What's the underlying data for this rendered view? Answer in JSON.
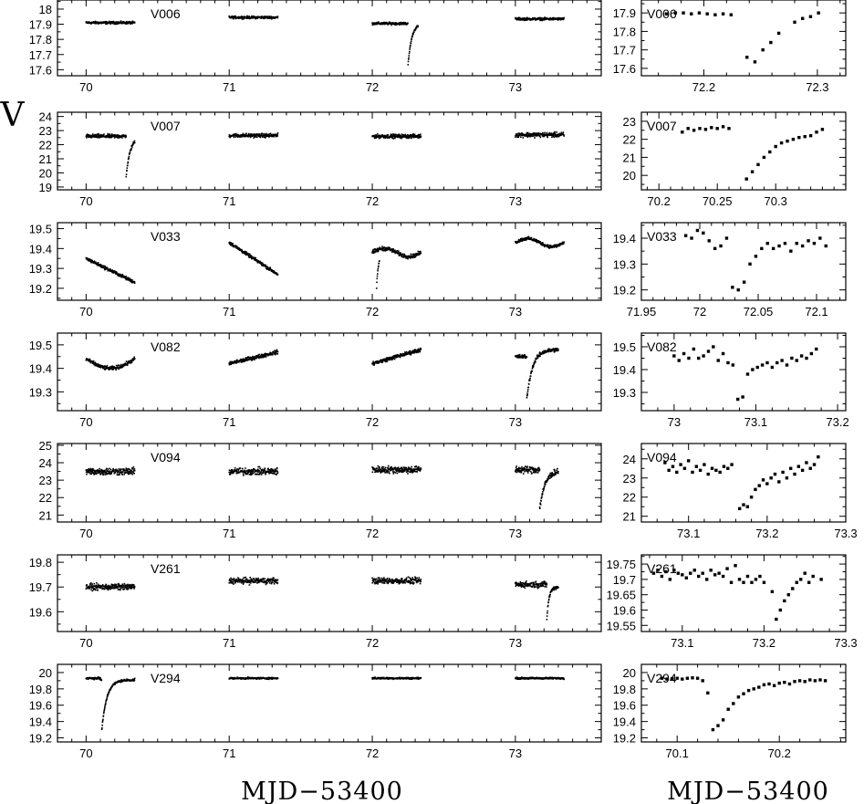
{
  "figure": {
    "ylabel": "V",
    "xlabel_left": "MJD−53400",
    "xlabel_right": "MJD−53400"
  },
  "chart_data": [
    {
      "type": "scatter",
      "side": "left",
      "label": "V006",
      "xlim": [
        69.8,
        73.6
      ],
      "ylim": [
        18.06,
        17.56
      ],
      "xticks": [
        70,
        71,
        72,
        73
      ],
      "yticks": [
        17.6,
        17.7,
        17.8,
        17.9,
        18
      ],
      "ytick_labels": [
        "17.6",
        "17.7",
        "17.8",
        "17.9",
        "18"
      ],
      "segments": [
        {
          "start": 70,
          "end": 70.34,
          "f": "flat",
          "base": 17.91,
          "noise": 0.012
        },
        {
          "start": 71,
          "end": 71.34,
          "f": "flat",
          "base": 17.945,
          "noise": 0.012
        },
        {
          "start": 72,
          "end": 72.24,
          "f": "flat",
          "base": 17.905,
          "noise": 0.012
        },
        {
          "start": 72.24,
          "end": 72.32,
          "f": "flare",
          "base": 17.905,
          "peak": 17.63,
          "peak_x": 72.25,
          "decay": 0.025,
          "noise": 0.01
        },
        {
          "start": 73,
          "end": 73.34,
          "f": "flat",
          "base": 17.935,
          "noise": 0.012
        }
      ]
    },
    {
      "type": "scatter",
      "side": "left",
      "label": "V007",
      "xlim": [
        69.8,
        73.6
      ],
      "ylim": [
        24.3,
        18.8
      ],
      "xticks": [
        70,
        71,
        72,
        73
      ],
      "yticks": [
        19,
        20,
        21,
        22,
        23,
        24
      ],
      "ytick_labels": [
        "19",
        "20",
        "21",
        "22",
        "23",
        "24"
      ],
      "segments": [
        {
          "start": 70,
          "end": 70.28,
          "f": "flat",
          "base": 22.6,
          "noise": 0.2
        },
        {
          "start": 70.28,
          "end": 70.34,
          "f": "flare",
          "base": 22.6,
          "peak": 19.8,
          "peak_x": 70.28,
          "decay": 0.03,
          "noise": 0.15
        },
        {
          "start": 71,
          "end": 71.34,
          "f": "flat",
          "base": 22.65,
          "noise": 0.2
        },
        {
          "start": 72,
          "end": 72.34,
          "f": "flat",
          "base": 22.6,
          "noise": 0.2
        },
        {
          "start": 73,
          "end": 73.34,
          "f": "flat",
          "base": 22.7,
          "noise": 0.25
        }
      ]
    },
    {
      "type": "scatter",
      "side": "left",
      "label": "V033",
      "xlim": [
        69.8,
        73.6
      ],
      "ylim": [
        19.53,
        19.14
      ],
      "xticks": [
        70,
        71,
        72,
        73
      ],
      "yticks": [
        19.2,
        19.3,
        19.4,
        19.5
      ],
      "ytick_labels": [
        "19.2",
        "19.3",
        "19.4",
        "19.5"
      ],
      "segments": [
        {
          "start": 70,
          "end": 70.34,
          "f": "linear",
          "y0": 19.35,
          "y1": 19.23,
          "noise": 0.012
        },
        {
          "start": 71,
          "end": 71.34,
          "f": "linear",
          "y0": 19.43,
          "y1": 19.27,
          "noise": 0.012
        },
        {
          "start": 72,
          "end": 72.34,
          "f": "wave",
          "base": 19.38,
          "amp": 0.02,
          "noise": 0.015
        },
        {
          "start": 72.03,
          "end": 72.05,
          "f": "flare",
          "base": 19.36,
          "peak": 19.2,
          "peak_x": 72.03,
          "decay": 0.01,
          "noise": 0.01
        },
        {
          "start": 73,
          "end": 73.34,
          "f": "wave",
          "base": 19.43,
          "amp": 0.02,
          "noise": 0.012
        }
      ]
    },
    {
      "type": "scatter",
      "side": "left",
      "label": "V082",
      "xlim": [
        69.8,
        73.6
      ],
      "ylim": [
        19.55,
        19.22
      ],
      "xticks": [
        70,
        71,
        72,
        73
      ],
      "yticks": [
        19.3,
        19.4,
        19.5
      ],
      "ytick_labels": [
        "19.3",
        "19.4",
        "19.5"
      ],
      "segments": [
        {
          "start": 70,
          "end": 70.34,
          "f": "hump",
          "base": 19.44,
          "amp": 0.04,
          "noise": 0.012
        },
        {
          "start": 71,
          "end": 71.34,
          "f": "linear",
          "y0": 19.42,
          "y1": 19.47,
          "noise": 0.012
        },
        {
          "start": 72,
          "end": 72.34,
          "f": "linear",
          "y0": 19.42,
          "y1": 19.48,
          "noise": 0.012
        },
        {
          "start": 73,
          "end": 73.08,
          "f": "flat",
          "base": 19.45,
          "noise": 0.012
        },
        {
          "start": 73.08,
          "end": 73.3,
          "f": "flare",
          "base": 19.48,
          "peak": 19.27,
          "peak_x": 73.08,
          "decay": 0.04,
          "noise": 0.012
        }
      ]
    },
    {
      "type": "scatter",
      "side": "left",
      "label": "V094",
      "xlim": [
        69.8,
        73.6
      ],
      "ylim": [
        25.1,
        20.6
      ],
      "xticks": [
        70,
        71,
        72,
        73
      ],
      "yticks": [
        21,
        22,
        23,
        24,
        25
      ],
      "ytick_labels": [
        "21",
        "22",
        "23",
        "24",
        "25"
      ],
      "segments": [
        {
          "start": 70,
          "end": 70.34,
          "f": "flat",
          "base": 23.5,
          "noise": 0.3
        },
        {
          "start": 71,
          "end": 71.34,
          "f": "flat",
          "base": 23.5,
          "noise": 0.3
        },
        {
          "start": 72,
          "end": 72.34,
          "f": "flat",
          "base": 23.6,
          "noise": 0.3
        },
        {
          "start": 73,
          "end": 73.17,
          "f": "flat",
          "base": 23.6,
          "noise": 0.3
        },
        {
          "start": 73.17,
          "end": 73.3,
          "f": "flare",
          "base": 23.6,
          "peak": 21.4,
          "peak_x": 73.17,
          "decay": 0.04,
          "noise": 0.25
        }
      ]
    },
    {
      "type": "scatter",
      "side": "left",
      "label": "V261",
      "xlim": [
        69.8,
        73.6
      ],
      "ylim": [
        19.83,
        19.52
      ],
      "xticks": [
        70,
        71,
        72,
        73
      ],
      "yticks": [
        19.6,
        19.7,
        19.8
      ],
      "ytick_labels": [
        "19.6",
        "19.7",
        "19.8"
      ],
      "segments": [
        {
          "start": 70,
          "end": 70.34,
          "f": "flat",
          "base": 19.7,
          "noise": 0.018
        },
        {
          "start": 71,
          "end": 71.34,
          "f": "flat",
          "base": 19.725,
          "noise": 0.018
        },
        {
          "start": 72,
          "end": 72.34,
          "f": "flat",
          "base": 19.725,
          "noise": 0.018
        },
        {
          "start": 73,
          "end": 73.22,
          "f": "flat",
          "base": 19.71,
          "noise": 0.018
        },
        {
          "start": 73.22,
          "end": 73.3,
          "f": "flare",
          "base": 19.7,
          "peak": 19.57,
          "peak_x": 73.22,
          "decay": 0.015,
          "noise": 0.01
        }
      ]
    },
    {
      "type": "scatter",
      "side": "left",
      "label": "V294",
      "xlim": [
        69.8,
        73.6
      ],
      "ylim": [
        20.1,
        19.15
      ],
      "xticks": [
        70,
        71,
        72,
        73
      ],
      "yticks": [
        19.2,
        19.4,
        19.6,
        19.8,
        20
      ],
      "ytick_labels": [
        "19.2",
        "19.4",
        "19.6",
        "19.8",
        "20"
      ],
      "segments": [
        {
          "start": 70,
          "end": 70.1,
          "f": "flat",
          "base": 19.93,
          "noise": 0.02
        },
        {
          "start": 70.1,
          "end": 70.34,
          "f": "flare",
          "base": 19.91,
          "peak": 19.3,
          "peak_x": 70.11,
          "decay": 0.035,
          "noise": 0.02
        },
        {
          "start": 71,
          "end": 71.34,
          "f": "flat",
          "base": 19.93,
          "noise": 0.015
        },
        {
          "start": 72,
          "end": 72.34,
          "f": "flat",
          "base": 19.93,
          "noise": 0.015
        },
        {
          "start": 73,
          "end": 73.34,
          "f": "flat",
          "base": 19.93,
          "noise": 0.015
        }
      ]
    },
    {
      "type": "scatter",
      "side": "right",
      "label": "V006",
      "xlim": [
        72.145,
        72.325
      ],
      "ylim": [
        17.97,
        17.56
      ],
      "xticks": [
        72.2,
        72.3
      ],
      "xtick_labels": [
        "72.2",
        "72.3"
      ],
      "yticks": [
        17.6,
        17.7,
        17.8,
        17.9
      ],
      "ytick_labels": [
        "17.6",
        "17.7",
        "17.8",
        "17.9"
      ],
      "x": [
        72.167,
        72.175,
        72.182,
        72.189,
        72.196,
        72.203,
        72.21,
        72.217,
        72.224,
        72.238,
        72.245,
        72.252,
        72.259,
        72.266,
        72.28,
        72.287,
        72.294,
        72.301
      ],
      "y": [
        17.895,
        17.9,
        17.9,
        17.895,
        17.9,
        17.895,
        17.89,
        17.895,
        17.89,
        17.66,
        17.635,
        17.7,
        17.74,
        17.79,
        17.85,
        17.87,
        17.88,
        17.9
      ]
    },
    {
      "type": "scatter",
      "side": "right",
      "label": "V007",
      "xlim": [
        70.185,
        70.36
      ],
      "ylim": [
        23.5,
        19.2
      ],
      "xticks": [
        70.2,
        70.25,
        70.3
      ],
      "xtick_labels": [
        "70.2",
        "70.25",
        "70.3"
      ],
      "yticks": [
        20,
        21,
        22,
        23
      ],
      "ytick_labels": [
        "20",
        "21",
        "22",
        "23"
      ],
      "x": [
        70.22,
        70.225,
        70.23,
        70.235,
        70.24,
        70.245,
        70.25,
        70.255,
        70.26,
        70.275,
        70.28,
        70.285,
        70.29,
        70.295,
        70.3,
        70.305,
        70.31,
        70.315,
        70.32,
        70.325,
        70.33,
        70.335,
        70.34
      ],
      "y": [
        22.4,
        22.6,
        22.5,
        22.6,
        22.55,
        22.65,
        22.6,
        22.7,
        22.6,
        19.8,
        20.2,
        20.6,
        21.0,
        21.3,
        21.6,
        21.8,
        21.9,
        22.0,
        22.1,
        22.15,
        22.2,
        22.4,
        22.55
      ]
    },
    {
      "type": "scatter",
      "side": "right",
      "label": "V033",
      "xlim": [
        71.95,
        72.125
      ],
      "ylim": [
        19.46,
        19.16
      ],
      "xticks": [
        71.95,
        72,
        72.05,
        72.1
      ],
      "xtick_labels": [
        "71.95",
        "72",
        "72.05",
        "72.1"
      ],
      "yticks": [
        19.2,
        19.3,
        19.4
      ],
      "ytick_labels": [
        "19.2",
        "19.3",
        "19.4"
      ],
      "x": [
        71.988,
        71.993,
        71.998,
        72.003,
        72.008,
        72.013,
        72.018,
        72.023,
        72.028,
        72.033,
        72.038,
        72.043,
        72.048,
        72.053,
        72.058,
        72.063,
        72.068,
        72.073,
        72.078,
        72.083,
        72.088,
        72.093,
        72.098,
        72.103,
        72.108
      ],
      "y": [
        19.41,
        19.4,
        19.43,
        19.42,
        19.39,
        19.36,
        19.37,
        19.4,
        19.21,
        19.2,
        19.23,
        19.3,
        19.33,
        19.36,
        19.38,
        19.36,
        19.37,
        19.38,
        19.35,
        19.38,
        19.37,
        19.39,
        19.38,
        19.4,
        19.37
      ]
    },
    {
      "type": "scatter",
      "side": "right",
      "label": "V082",
      "xlim": [
        72.96,
        73.21
      ],
      "ylim": [
        19.56,
        19.22
      ],
      "xticks": [
        73,
        73.1,
        73.2
      ],
      "xtick_labels": [
        "73",
        "73.1",
        "73.2"
      ],
      "yticks": [
        19.3,
        19.4,
        19.5
      ],
      "ytick_labels": [
        "19.3",
        "19.4",
        "19.5"
      ],
      "x": [
        73.0,
        73.006,
        73.012,
        73.018,
        73.024,
        73.03,
        73.036,
        73.042,
        73.048,
        73.054,
        73.06,
        73.066,
        73.072,
        73.078,
        73.084,
        73.09,
        73.096,
        73.102,
        73.108,
        73.114,
        73.12,
        73.126,
        73.132,
        73.138,
        73.144,
        73.15,
        73.156,
        73.162,
        73.168,
        73.174
      ],
      "y": [
        19.46,
        19.44,
        19.47,
        19.45,
        19.49,
        19.45,
        19.46,
        19.48,
        19.5,
        19.44,
        19.47,
        19.43,
        19.42,
        19.27,
        19.28,
        19.38,
        19.4,
        19.41,
        19.42,
        19.43,
        19.41,
        19.43,
        19.44,
        19.42,
        19.45,
        19.44,
        19.46,
        19.45,
        19.47,
        19.49
      ]
    },
    {
      "type": "scatter",
      "side": "right",
      "label": "V094",
      "xlim": [
        73.04,
        73.3
      ],
      "ylim": [
        24.8,
        20.7
      ],
      "xticks": [
        73.1,
        73.2,
        73.3
      ],
      "xtick_labels": [
        "73.1",
        "73.2",
        "73.3"
      ],
      "yticks": [
        21,
        22,
        23,
        24
      ],
      "ytick_labels": [
        "21",
        "22",
        "23",
        "24"
      ],
      "x": [
        73.07,
        73.075,
        73.08,
        73.085,
        73.09,
        73.095,
        73.1,
        73.105,
        73.11,
        73.115,
        73.12,
        73.125,
        73.13,
        73.135,
        73.14,
        73.145,
        73.15,
        73.155,
        73.165,
        73.17,
        73.175,
        73.18,
        73.185,
        73.19,
        73.195,
        73.2,
        73.205,
        73.21,
        73.215,
        73.22,
        73.225,
        73.23,
        73.235,
        73.24,
        73.245,
        73.25,
        73.255,
        73.26,
        73.265
      ],
      "y": [
        23.8,
        23.4,
        23.6,
        23.3,
        23.7,
        23.5,
        23.9,
        23.3,
        23.6,
        23.4,
        23.7,
        23.2,
        23.5,
        23.4,
        23.3,
        23.6,
        23.5,
        23.7,
        21.4,
        21.6,
        21.5,
        22.0,
        22.4,
        22.6,
        22.9,
        22.7,
        23.0,
        23.2,
        22.8,
        23.3,
        23.0,
        23.5,
        23.2,
        23.6,
        23.4,
        23.8,
        23.5,
        23.7,
        24.1
      ]
    },
    {
      "type": "scatter",
      "side": "right",
      "label": "V261",
      "xlim": [
        73.05,
        73.3
      ],
      "ylim": [
        19.78,
        19.53
      ],
      "xticks": [
        73.1,
        73.2,
        73.3
      ],
      "xtick_labels": [
        "73.1",
        "73.2",
        "73.3"
      ],
      "yticks": [
        19.55,
        19.6,
        19.65,
        19.7,
        19.75
      ],
      "ytick_labels": [
        "19.55",
        "19.6",
        "19.65",
        "19.7",
        "19.75"
      ],
      "x": [
        73.065,
        73.07,
        73.075,
        73.08,
        73.085,
        73.09,
        73.095,
        73.1,
        73.105,
        73.11,
        73.115,
        73.12,
        73.125,
        73.13,
        73.135,
        73.14,
        73.145,
        73.15,
        73.155,
        73.16,
        73.165,
        73.17,
        73.175,
        73.18,
        73.185,
        73.19,
        73.195,
        73.2,
        73.21,
        73.215,
        73.22,
        73.225,
        73.23,
        73.235,
        73.24,
        73.245,
        73.25,
        73.255,
        73.26,
        73.27
      ],
      "y": [
        19.72,
        19.73,
        19.71,
        19.725,
        19.7,
        19.73,
        19.72,
        19.715,
        19.705,
        19.72,
        19.73,
        19.71,
        19.72,
        19.7,
        19.73,
        19.715,
        19.72,
        19.71,
        19.735,
        19.69,
        19.745,
        19.7,
        19.69,
        19.71,
        19.69,
        19.7,
        19.71,
        19.69,
        19.66,
        19.57,
        19.6,
        19.63,
        19.65,
        19.67,
        19.69,
        19.7,
        19.72,
        19.69,
        19.71,
        19.7
      ]
    },
    {
      "type": "scatter",
      "side": "right",
      "label": "V294",
      "xlim": [
        70.065,
        70.265
      ],
      "ylim": [
        20.1,
        19.15
      ],
      "xticks": [
        70.1,
        70.2
      ],
      "xtick_labels": [
        "70.1",
        "70.2"
      ],
      "yticks": [
        19.2,
        19.4,
        19.6,
        19.8,
        20
      ],
      "ytick_labels": [
        "19.2",
        "19.4",
        "19.6",
        "19.8",
        "20"
      ],
      "x": [
        70.085,
        70.09,
        70.095,
        70.1,
        70.105,
        70.11,
        70.115,
        70.12,
        70.125,
        70.13,
        70.135,
        70.14,
        70.145,
        70.15,
        70.155,
        70.16,
        70.165,
        70.17,
        70.175,
        70.18,
        70.185,
        70.19,
        70.195,
        70.2,
        70.205,
        70.21,
        70.215,
        70.22,
        70.225,
        70.23,
        70.235,
        70.24,
        70.245
      ],
      "y": [
        19.93,
        19.92,
        19.925,
        19.93,
        19.92,
        19.93,
        19.935,
        19.93,
        19.9,
        19.75,
        19.3,
        19.35,
        19.42,
        19.55,
        19.62,
        19.7,
        19.74,
        19.78,
        19.8,
        19.82,
        19.85,
        19.86,
        19.84,
        19.87,
        19.88,
        19.86,
        19.89,
        19.9,
        19.89,
        19.91,
        19.9,
        19.91,
        19.9
      ]
    }
  ]
}
